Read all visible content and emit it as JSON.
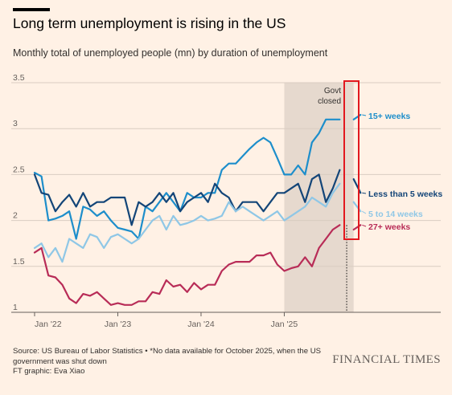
{
  "title": "Long term unemployment is rising in the US",
  "subtitle": "Monthly total of unemployed people (mn) by duration of unemployment",
  "source_line1": "Source: US Bureau of Labor Statistics • *No data available for October 2025, when the US",
  "source_line2": "government was shut down",
  "credit": "FT graphic: Eva Xiao",
  "brand": "FINANCIAL TIMES",
  "colors": {
    "background": "#fff1e5",
    "shade": "#e6d9ce",
    "highlight_box": "#e2181f",
    "gridline": "#d9ccc1"
  },
  "chart_data": {
    "type": "line",
    "ylim": [
      1,
      3.5
    ],
    "y_ticks": [
      "1",
      "1.5",
      "2",
      "2.5",
      "3",
      "3.5"
    ],
    "x_ticks": [
      "Jan '22",
      "Jan '23",
      "Jan '24",
      "Jan '25"
    ],
    "grid": true,
    "shaded_period": {
      "from": "2025-01",
      "to": "2025-11"
    },
    "shade_label": [
      "Govt",
      "closed"
    ],
    "missing_month": "2025-10",
    "x": [
      "2022-01",
      "2022-02",
      "2022-03",
      "2022-04",
      "2022-05",
      "2022-06",
      "2022-07",
      "2022-08",
      "2022-09",
      "2022-10",
      "2022-11",
      "2022-12",
      "2023-01",
      "2023-02",
      "2023-03",
      "2023-04",
      "2023-05",
      "2023-06",
      "2023-07",
      "2023-08",
      "2023-09",
      "2023-10",
      "2023-11",
      "2023-12",
      "2024-01",
      "2024-02",
      "2024-03",
      "2024-04",
      "2024-05",
      "2024-06",
      "2024-07",
      "2024-08",
      "2024-09",
      "2024-10",
      "2024-11",
      "2024-12",
      "2025-01",
      "2025-02",
      "2025-03",
      "2025-04",
      "2025-05",
      "2025-06",
      "2025-07",
      "2025-08",
      "2025-09",
      "2025-10",
      "2025-11",
      "2025-12"
    ],
    "series": [
      {
        "name": "15+ weeks",
        "color": "#1d8ecb",
        "values": [
          2.52,
          2.48,
          2.0,
          2.02,
          2.05,
          2.1,
          1.8,
          2.15,
          2.12,
          2.05,
          2.1,
          2.0,
          1.92,
          1.9,
          1.88,
          1.8,
          2.15,
          2.1,
          2.2,
          2.3,
          2.2,
          2.1,
          2.3,
          2.25,
          2.25,
          2.3,
          2.3,
          2.55,
          2.62,
          2.62,
          2.7,
          2.78,
          2.85,
          2.9,
          2.85,
          2.68,
          2.5,
          2.5,
          2.6,
          2.5,
          2.85,
          2.95,
          3.1,
          3.1,
          3.1,
          null,
          3.1,
          3.15
        ]
      },
      {
        "name": "Less than 5 weeks",
        "color": "#134578",
        "values": [
          2.5,
          2.3,
          2.28,
          2.1,
          2.2,
          2.28,
          2.15,
          2.3,
          2.15,
          2.2,
          2.2,
          2.25,
          2.25,
          2.25,
          1.95,
          2.2,
          2.15,
          2.2,
          2.3,
          2.2,
          2.3,
          2.1,
          2.2,
          2.25,
          2.3,
          2.2,
          2.4,
          2.3,
          2.25,
          2.1,
          2.2,
          2.2,
          2.2,
          2.1,
          2.2,
          2.3,
          2.3,
          2.35,
          2.4,
          2.2,
          2.45,
          2.5,
          2.2,
          2.35,
          2.55,
          null,
          2.45,
          2.3
        ]
      },
      {
        "name": "5 to 14 weeks",
        "color": "#8fc7e6",
        "values": [
          1.7,
          1.75,
          1.6,
          1.7,
          1.55,
          1.8,
          1.75,
          1.7,
          1.85,
          1.82,
          1.7,
          1.82,
          1.85,
          1.8,
          1.75,
          1.8,
          1.9,
          2.0,
          2.05,
          1.9,
          2.05,
          1.95,
          1.97,
          2.0,
          2.05,
          2.0,
          2.02,
          2.05,
          2.2,
          2.1,
          2.15,
          2.1,
          2.05,
          2.0,
          2.05,
          2.1,
          2.0,
          2.05,
          2.1,
          2.15,
          2.25,
          2.2,
          2.15,
          2.3,
          2.4,
          null,
          2.2,
          2.1
        ]
      },
      {
        "name": "27+ weeks",
        "color": "#b82c57",
        "values": [
          1.65,
          1.7,
          1.4,
          1.38,
          1.3,
          1.15,
          1.1,
          1.2,
          1.18,
          1.22,
          1.15,
          1.08,
          1.1,
          1.08,
          1.08,
          1.12,
          1.12,
          1.22,
          1.2,
          1.35,
          1.28,
          1.3,
          1.22,
          1.32,
          1.25,
          1.3,
          1.3,
          1.45,
          1.52,
          1.55,
          1.55,
          1.55,
          1.62,
          1.62,
          1.65,
          1.52,
          1.45,
          1.48,
          1.5,
          1.6,
          1.5,
          1.7,
          1.8,
          1.9,
          1.95,
          null,
          1.9,
          1.95
        ]
      }
    ]
  }
}
